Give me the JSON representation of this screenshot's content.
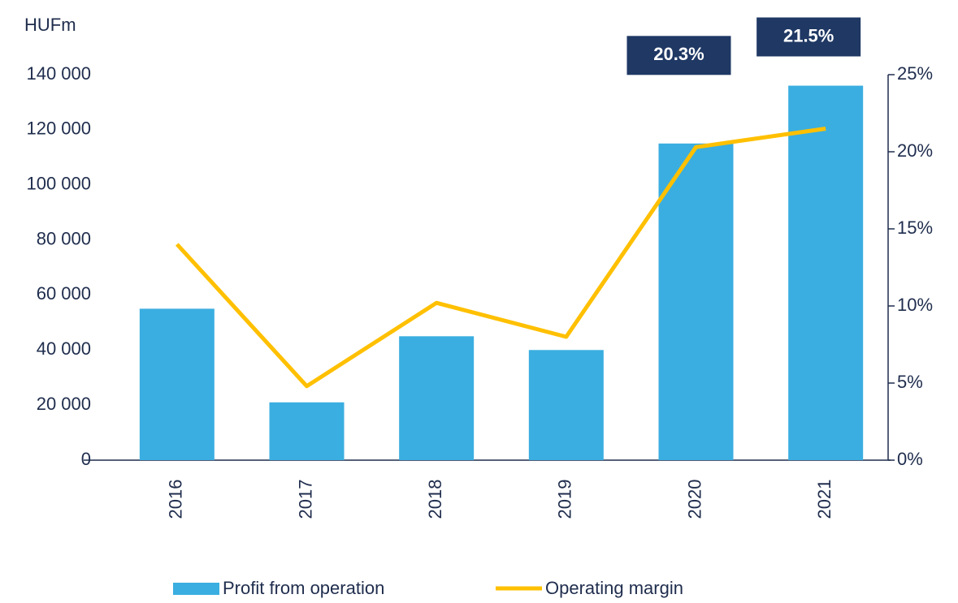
{
  "chart_data": {
    "type": "bar",
    "y_label": "HUFm",
    "categories": [
      "2016",
      "2017",
      "2018",
      "2019",
      "2020",
      "2021"
    ],
    "series": [
      {
        "name": "Profit from operation",
        "type": "bar",
        "color": "#3aaee0",
        "values": [
          55000,
          21000,
          45000,
          40000,
          115000,
          136000
        ]
      },
      {
        "name": "Operating margin",
        "type": "line",
        "axis": "y2",
        "color": "#ffc000",
        "values": [
          14,
          4.8,
          10.2,
          8,
          20.3,
          21.5
        ],
        "value_labels": [
          null,
          null,
          null,
          null,
          "20.3%",
          "21.5%"
        ],
        "label_color": "#1f3864"
      }
    ],
    "ylim": [
      0,
      140000
    ],
    "yticks": [
      0,
      {
        "value": 20000,
        "label": "20 000"
      },
      {
        "value": 40000,
        "label": "40 000"
      },
      {
        "value": 60000,
        "label": "60 000"
      },
      {
        "value": 80000,
        "label": "80 000"
      },
      {
        "value": 100000,
        "label": "100 000"
      },
      {
        "value": 120000,
        "label": "120 000"
      },
      {
        "value": 140000,
        "label": "140 000"
      }
    ],
    "y2lim": [
      0,
      25
    ],
    "y2ticks": [
      {
        "value": 0,
        "label": "0%"
      },
      {
        "value": 5,
        "label": "5%"
      },
      {
        "value": 10,
        "label": "10%"
      },
      {
        "value": 15,
        "label": "15%"
      },
      {
        "value": 20,
        "label": "20%"
      },
      {
        "value": 25,
        "label": "25%"
      }
    ],
    "legend": "bottom"
  }
}
